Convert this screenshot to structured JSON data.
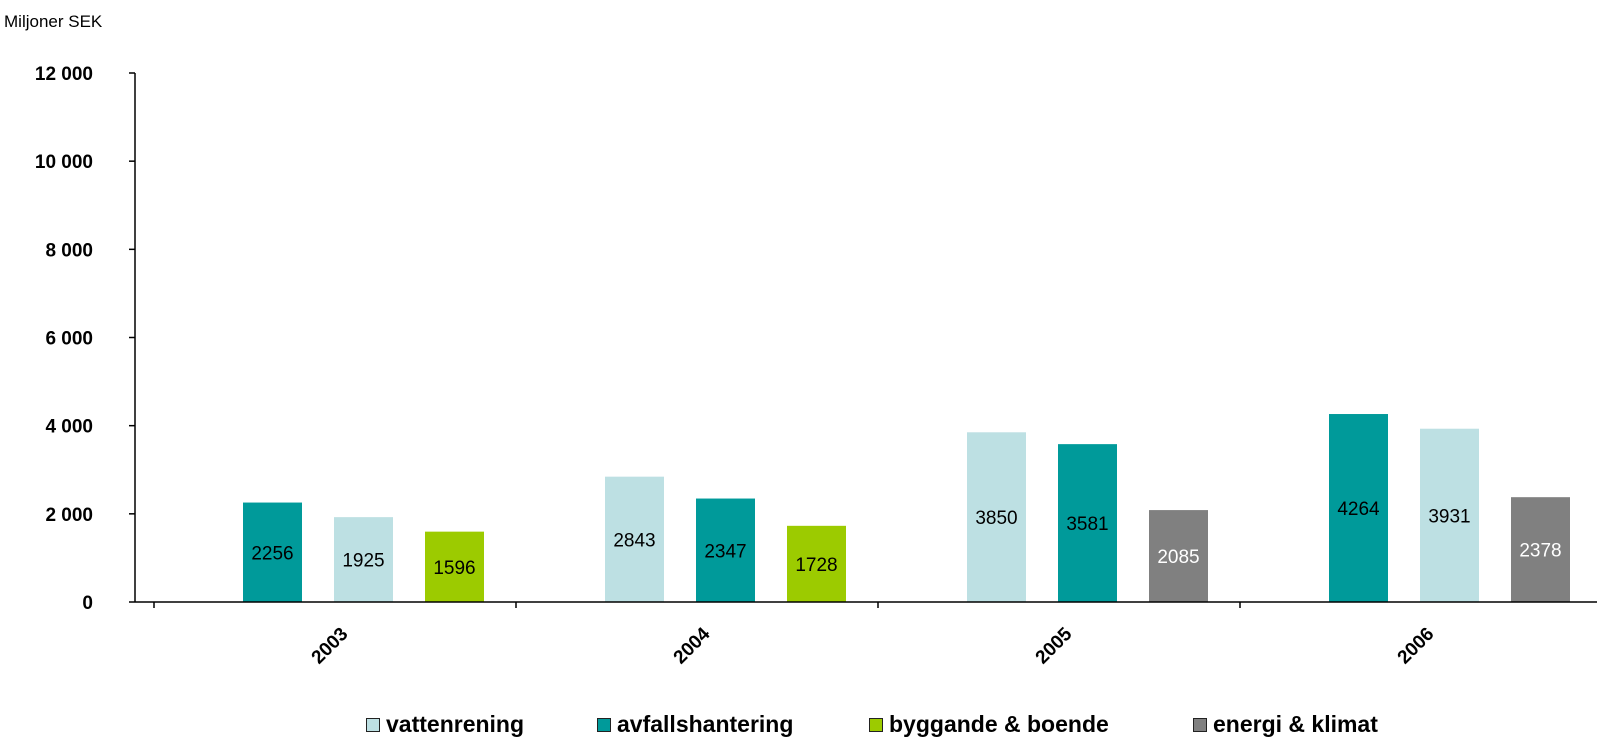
{
  "unit_label": "Miljoner SEK",
  "colors": {
    "vattenrening": "#bde0e3",
    "avfallshantering": "#009a9a",
    "byggande": "#9ccb00",
    "energi": "#808080"
  },
  "chart_data": {
    "type": "bar",
    "ylabel": "Miljoner SEK",
    "ylim": [
      0,
      12000
    ],
    "yticks": [
      0,
      2000,
      4000,
      6000,
      8000,
      10000,
      12000
    ],
    "ytick_labels": [
      "0",
      "2 000",
      "4 000",
      "6 000",
      "8 000",
      "10 000",
      "12 000"
    ],
    "grid": false,
    "legend_position": "bottom",
    "categories": [
      "2003",
      "2004",
      "2005",
      "2006"
    ],
    "series": [
      {
        "name": "vattenrening",
        "color": "#bde0e3",
        "values": [
          1925,
          2843,
          3850,
          3931
        ]
      },
      {
        "name": "avfallshantering",
        "color": "#009a9a",
        "values": [
          2256,
          2347,
          3581,
          4264
        ]
      },
      {
        "name": "byggande & boende",
        "color": "#9ccb00",
        "values": [
          1596,
          1728,
          null,
          null
        ]
      },
      {
        "name": "energi & klimat",
        "color": "#808080",
        "values": [
          null,
          null,
          2085,
          2378
        ]
      }
    ],
    "bar_order": [
      [
        "avfallshantering",
        "vattenrening",
        "byggande & boende"
      ],
      [
        "vattenrening",
        "avfallshantering",
        "byggande & boende"
      ],
      [
        "vattenrening",
        "avfallshantering",
        "energi & klimat"
      ],
      [
        "avfallshantering",
        "vattenrening",
        "energi & klimat"
      ]
    ],
    "label_colors": {
      "vattenrening": "#000000",
      "avfallshantering": "#000000",
      "byggande & boende": "#000000",
      "energi & klimat": "#ffffff"
    }
  },
  "legend": [
    {
      "label": "vattenrening",
      "color": "#bde0e3"
    },
    {
      "label": "avfallshantering",
      "color": "#009a9a"
    },
    {
      "label": "byggande & boende",
      "color": "#9ccb00"
    },
    {
      "label": "energi & klimat",
      "color": "#808080"
    }
  ]
}
